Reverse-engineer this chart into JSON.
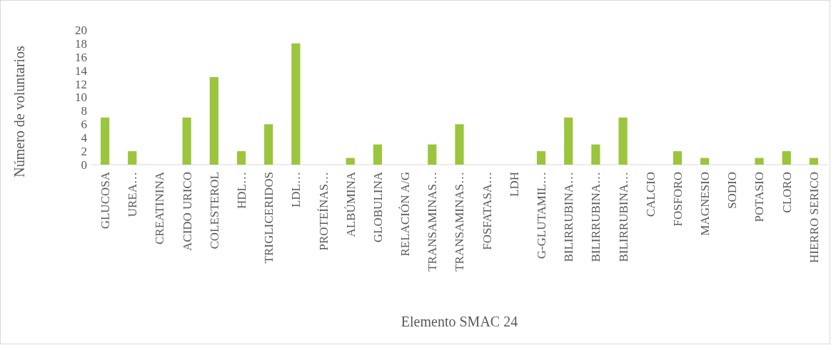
{
  "chart_data": {
    "type": "bar",
    "xlabel": "Elemento SMAC 24",
    "ylabel": "Número de voluntarios",
    "categories": [
      "GLUCOSA",
      "UREA…",
      "CREATININA",
      "ACIDO URICO",
      "COLESTEROL",
      "HDL…",
      "TRIGLICERIDOS",
      "LDL…",
      "PROTEÍNAS…",
      "ALBÚMINA",
      "GLOBULINA",
      "RELACIÓN A/G",
      "TRANSAMINAS…",
      "TRANSAMINAS…",
      "FOSFATASA…",
      "LDH",
      "G-GLUTAMIL…",
      "BILIRRUBINA…",
      "BILIRRUBINA…",
      "BILIRRUBINA…",
      "CALCIO",
      "FOSFORO",
      "MAGNESIO",
      "SODIO",
      "POTASIO",
      "CLORO",
      "HIERRO SERICO"
    ],
    "values": [
      7,
      2,
      0,
      7,
      13,
      2,
      6,
      18,
      0,
      1,
      3,
      0,
      3,
      6,
      0,
      0,
      2,
      7,
      3,
      7,
      0,
      2,
      1,
      0,
      1,
      2,
      1
    ],
    "color": "#9bc53d",
    "ylim": [
      0,
      20
    ],
    "yticks": [
      0,
      2,
      4,
      6,
      8,
      10,
      12,
      14,
      16,
      18,
      20
    ],
    "grid": false
  }
}
